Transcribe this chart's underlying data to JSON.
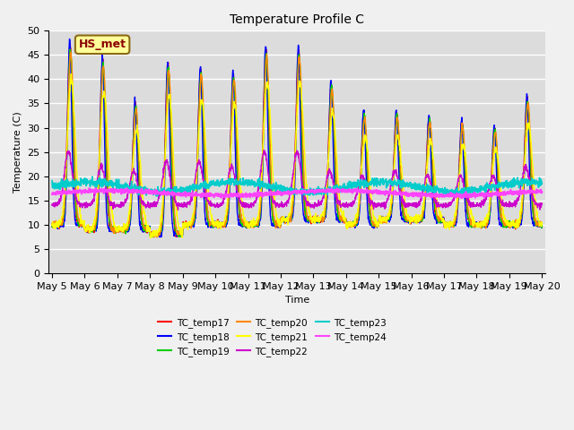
{
  "title": "Temperature Profile C",
  "xlabel": "Time",
  "ylabel": "Temperature (C)",
  "ylim": [
    0,
    50
  ],
  "background_color": "#dcdcdc",
  "grid_color": "#ffffff",
  "annotation_text": "HS_met",
  "annotation_bg": "#ffff99",
  "annotation_border": "#8b6914",
  "annotation_text_color": "#8b0000",
  "series": [
    {
      "name": "TC_temp17",
      "color": "#ff0000"
    },
    {
      "name": "TC_temp18",
      "color": "#0000ff"
    },
    {
      "name": "TC_temp19",
      "color": "#00cc00"
    },
    {
      "name": "TC_temp20",
      "color": "#ff8800"
    },
    {
      "name": "TC_temp21",
      "color": "#ffff00"
    },
    {
      "name": "TC_temp22",
      "color": "#cc00cc"
    },
    {
      "name": "TC_temp23",
      "color": "#00cccc"
    },
    {
      "name": "TC_temp24",
      "color": "#ff44ff"
    }
  ],
  "x_tick_labels": [
    "May 5",
    "May 6",
    "May 7",
    "May 8",
    "May 9",
    "May 10",
    "May 11",
    "May 12",
    "May 13",
    "May 14",
    "May 15",
    "May 16",
    "May 17",
    "May 18",
    "May 19",
    "May 20"
  ],
  "x_tick_positions": [
    0,
    1,
    2,
    3,
    4,
    5,
    6,
    7,
    8,
    9,
    10,
    11,
    12,
    13,
    14,
    15
  ],
  "yticks": [
    0,
    5,
    10,
    15,
    20,
    25,
    30,
    35,
    40,
    45,
    50
  ]
}
